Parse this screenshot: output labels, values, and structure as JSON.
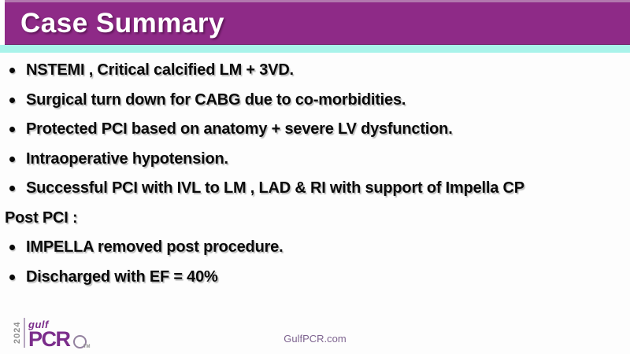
{
  "header": {
    "title": "Case Summary"
  },
  "content": {
    "lines": [
      {
        "text": "NSTEMI , Critical calcified LM + 3VD.",
        "bulleted": true
      },
      {
        "text": "Surgical turn down for CABG due to co-morbidities.",
        "bulleted": true
      },
      {
        "text": "Protected PCI based on anatomy + severe LV dysfunction.",
        "bulleted": true
      },
      {
        "text": "Intraoperative hypotension.",
        "bulleted": true
      },
      {
        "text": "Successful PCI with IVL to LM , LAD & RI with support of Impella CP",
        "bulleted": true
      },
      {
        "text": "Post PCI :",
        "bulleted": false
      },
      {
        "text": "IMPELLA removed post procedure.",
        "bulleted": true
      },
      {
        "text": "Discharged with EF = 40%",
        "bulleted": true
      }
    ]
  },
  "footer": {
    "website": "GulfPCR.com",
    "logo": {
      "year": "2024",
      "brand_top": "gulf",
      "brand_main": "PCR",
      "trademark": "TM"
    }
  },
  "colors": {
    "header_purple": "#8E2A87",
    "header_top_edge": "#B277AE",
    "accent_cyan": "#A9F3EA",
    "logo_purple": "#7B2D8B",
    "footer_text": "#7E6490"
  }
}
